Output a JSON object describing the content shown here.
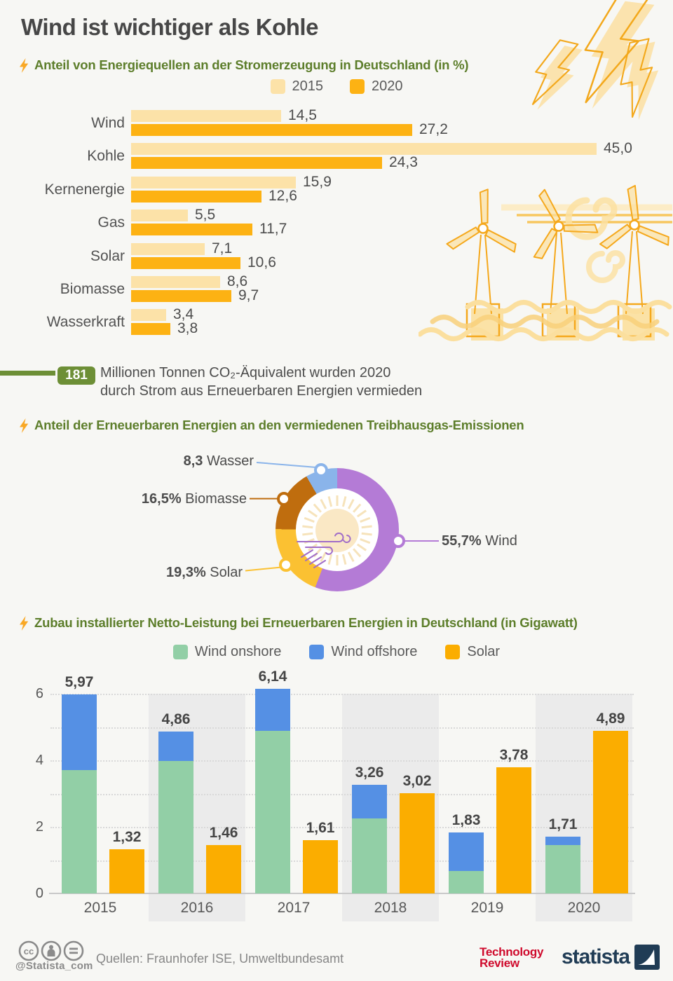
{
  "header": {
    "title": "Wind ist wichtiger als Kohle"
  },
  "sections": {
    "s1": {
      "heading": "Anteil von Energiequellen an der Stromerzeugung in Deutschland (in %)"
    },
    "s2": {
      "heading": "Anteil der Erneuerbaren Energien an den vermiedenen Treibhausgas-Emissionen"
    },
    "s3": {
      "heading": "Zubau installierter Netto-Leistung bei Erneuerbaren Energien in Deutschland (in Gigawatt)"
    }
  },
  "callout": {
    "badge": "181",
    "line1": "Millionen Tonnen CO₂-Äquivalent wurden 2020",
    "line2": "durch Strom aus Erneuerbaren Energien vermieden",
    "accent": "#6d8f36"
  },
  "chart_data": [
    {
      "id": "energy-source-share",
      "type": "bar",
      "orientation": "horizontal",
      "title": "Anteil von Energiequellen an der Stromerzeugung in Deutschland (in %)",
      "categories": [
        "Wind",
        "Kohle",
        "Kernenergie",
        "Gas",
        "Solar",
        "Biomasse",
        "Wasserkraft"
      ],
      "series": [
        {
          "name": "2015",
          "color": "#fce2a8",
          "values": [
            14.5,
            45.0,
            15.9,
            5.5,
            7.1,
            8.6,
            3.4
          ],
          "labels": [
            "14,5",
            "45,0",
            "15,9",
            "5,5",
            "7,1",
            "8,6",
            "3,4"
          ]
        },
        {
          "name": "2020",
          "color": "#fdb213",
          "values": [
            27.2,
            24.3,
            12.6,
            11.7,
            10.6,
            9.7,
            3.8
          ],
          "labels": [
            "27,2",
            "24,3",
            "12,6",
            "11,7",
            "10,6",
            "9,7",
            "3,8"
          ]
        }
      ],
      "xlim": [
        0,
        45
      ],
      "grid": false,
      "legend_position": "top-center"
    },
    {
      "id": "avoided-emissions-share",
      "type": "pie",
      "title": "Anteil der Erneuerbaren Energien an den vermiedenen Treibhausgas-Emissionen",
      "segments": [
        {
          "name": "Wind",
          "value": 55.7,
          "label_num": "55,7%",
          "label_name": "Wind",
          "color": "#b47bd6",
          "label_pos": "right"
        },
        {
          "name": "Solar",
          "value": 19.3,
          "label_num": "19,3%",
          "label_name": "Solar",
          "color": "#fbc132",
          "label_pos": "bottom-left"
        },
        {
          "name": "Biomasse",
          "value": 16.5,
          "label_num": "16,5%",
          "label_name": "Biomasse",
          "color": "#bf6d0e",
          "label_pos": "left"
        },
        {
          "name": "Wasser",
          "value": 8.3,
          "label_num": "8,3",
          "label_name": "Wasser",
          "color": "#8ab4ea",
          "label_pos": "top-left"
        }
      ],
      "donut": true
    },
    {
      "id": "capacity-additions",
      "type": "bar",
      "stacked": "wind series stacked, solar grouped beside",
      "title": "Zubau installierter Netto-Leistung bei Erneuerbaren Energien in Deutschland (in Gigawatt)",
      "categories": [
        "2015",
        "2016",
        "2017",
        "2018",
        "2019",
        "2020"
      ],
      "series": [
        {
          "name": "Wind onshore",
          "color": "#92cfa6",
          "values": [
            3.7,
            3.98,
            4.88,
            2.25,
            0.67,
            1.46
          ]
        },
        {
          "name": "Wind offshore",
          "color": "#5590e4",
          "values": [
            2.27,
            0.88,
            1.26,
            1.01,
            1.16,
            0.25
          ]
        },
        {
          "name": "Solar",
          "color": "#fbad00",
          "values": [
            1.32,
            1.46,
            1.61,
            3.02,
            3.78,
            4.89
          ]
        }
      ],
      "wind_total_labels": [
        "5,97",
        "4,86",
        "6,14",
        "3,26",
        "1,83",
        "1,71"
      ],
      "solar_labels": [
        "1,32",
        "1,46",
        "1,61",
        "3,02",
        "3,78",
        "4,89"
      ],
      "yticks": [
        0,
        2,
        4,
        6
      ],
      "ylim": [
        0,
        6.5
      ],
      "grid": "horizontal dotted every 1",
      "band_color": "#ebebeb",
      "legend_position": "top-center"
    }
  ],
  "footer": {
    "handle": "@Statista_com",
    "sources": "Quellen: Fraunhofer ISE, Umweltbundesamt",
    "cc_text": "cc",
    "partner_line1": "Technology",
    "partner_line2": "Review",
    "partner_color": "#cf0a2c",
    "brand": "statista",
    "brand_color": "#203c55"
  },
  "colors": {
    "background": "#f7f7f4",
    "title_gray": "#474747",
    "heading_green": "#5d7e2b",
    "bolt_orange": "#f9a825",
    "illustration_orange": "#f5a81c",
    "illustration_light": "#fbe2a6",
    "grid_dotted": "#d9d9d9",
    "axis_line": "#c9c9c9",
    "band_gray": "#ebebeb"
  }
}
